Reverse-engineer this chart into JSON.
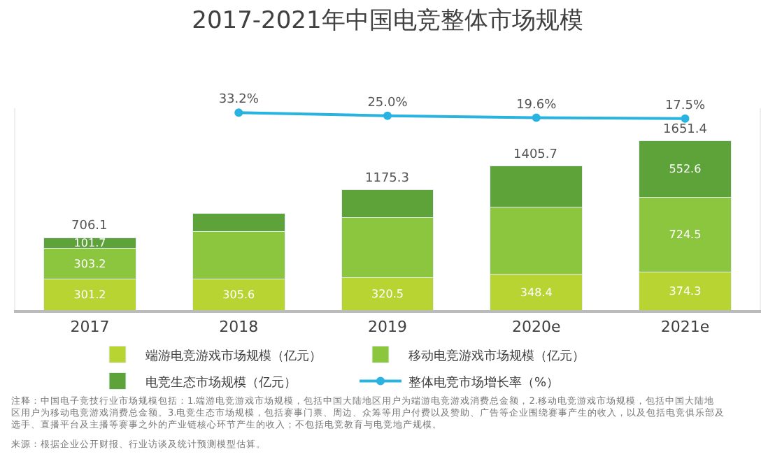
{
  "chart_data": {
    "type": "bar",
    "stacked": true,
    "title": "2017-2021年中国电竞整体市场规模",
    "categories": [
      "2017",
      "2018",
      "2019",
      "2020e",
      "2021e"
    ],
    "series": [
      {
        "name": "端游电竞游戏市场规模（亿元）",
        "color": "#b8d432",
        "values": [
          301.2,
          305.6,
          320.5,
          348.4,
          374.3
        ],
        "value_labels": [
          "301.2",
          "305.6",
          "320.5",
          "348.4",
          "374.3"
        ]
      },
      {
        "name": "移动电竞游戏市场规模（亿元）",
        "color": "#8cc63f",
        "values": [
          303.2,
          462,
          581,
          655,
          724.5
        ],
        "value_labels": [
          "303.2",
          null,
          null,
          null,
          "724.5"
        ]
      },
      {
        "name": "电竞生态市场规模（亿元）",
        "color": "#5ea33a",
        "values": [
          101.7,
          172,
          273.8,
          402.3,
          552.6
        ],
        "value_labels": [
          "101.7",
          null,
          null,
          null,
          "552.6"
        ]
      },
      {
        "name": "整体电竞市场增长率（%）",
        "type": "line",
        "axis": "y2",
        "color": "#29b3e0",
        "marker": "circle",
        "values": [
          null,
          33.2,
          25.0,
          19.6,
          17.5
        ],
        "value_labels": [
          null,
          "33.2%",
          "25.0%",
          "19.6%",
          "17.5%"
        ]
      }
    ],
    "totals": [
      "706.1",
      null,
      "1175.3",
      "1405.7",
      "1651.4"
    ],
    "ylim": [
      0,
      1965
    ],
    "y2lim": [
      -500,
      45
    ],
    "tick_labels": "x",
    "legend": "bottom",
    "annotations": [
      "注释：中国电子竞技行业市场规模包括：1.端游电竞游戏市场规模，包括中国大陆地区用户为端游电竞游戏消费总金额，2.移动电竞游戏市场规模，包括中国大陆地区用户为移动电竞游戏消费总金额。3.电竞生态市场规模，包括赛事门票、周边、众筹等用户付费以及赞助、广告等企业围绕赛事产生的收入，以及包括电竞俱乐部及选手、直播平台及主播等赛事之外的产业链核心环节产生的收入；不包括电竞教育与电竞地产规模。",
      "来源：根据企业公开财报、行业访谈及统计预测模型估算。"
    ]
  }
}
